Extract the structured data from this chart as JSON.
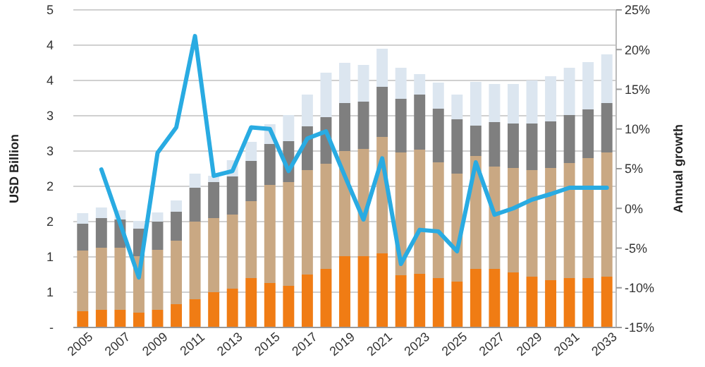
{
  "chart_data": {
    "type": "bar",
    "stacked": true,
    "ylabel": "USD Billion",
    "y2label": "Annual growth",
    "categories": [
      "2005",
      null,
      "2007",
      null,
      "2009",
      null,
      "2011",
      null,
      "2013",
      null,
      "2015",
      null,
      "2017",
      null,
      "2019",
      null,
      "2021",
      null,
      "2023",
      null,
      "2025",
      null,
      "2027",
      null,
      "2029",
      null,
      "2031",
      null,
      "2033"
    ],
    "series": [
      {
        "color": "#f07c14",
        "values": [
          0.23,
          0.25,
          0.25,
          0.21,
          0.25,
          0.33,
          0.4,
          0.5,
          0.55,
          0.7,
          0.63,
          0.59,
          0.75,
          0.83,
          1.01,
          1.01,
          1.05,
          0.74,
          0.76,
          0.7,
          0.65,
          0.83,
          0.83,
          0.78,
          0.72,
          0.67,
          0.7,
          0.7,
          0.72
        ]
      },
      {
        "color": "#c9a883",
        "values": [
          0.86,
          0.88,
          0.88,
          0.8,
          0.85,
          0.9,
          1.1,
          1.05,
          1.05,
          1.09,
          1.39,
          1.47,
          1.48,
          1.49,
          1.49,
          1.52,
          1.65,
          1.74,
          1.76,
          1.64,
          1.53,
          1.6,
          1.45,
          1.48,
          1.51,
          1.59,
          1.63,
          1.7,
          1.76
        ]
      },
      {
        "color": "#7f7f7f",
        "values": [
          0.38,
          0.42,
          0.4,
          0.39,
          0.4,
          0.41,
          0.48,
          0.51,
          0.54,
          0.57,
          0.58,
          0.58,
          0.62,
          0.66,
          0.68,
          0.67,
          0.71,
          0.76,
          0.78,
          0.76,
          0.77,
          0.43,
          0.63,
          0.63,
          0.66,
          0.66,
          0.68,
          0.69,
          0.7
        ]
      },
      {
        "color": "#dce6f0",
        "values": [
          0.15,
          0.15,
          0.13,
          0.11,
          0.13,
          0.16,
          0.2,
          0.09,
          0.23,
          0.27,
          0.28,
          0.37,
          0.45,
          0.63,
          0.57,
          0.52,
          0.54,
          0.44,
          0.29,
          0.37,
          0.35,
          0.62,
          0.54,
          0.56,
          0.61,
          0.64,
          0.67,
          0.67,
          0.69
        ]
      },
      {
        "type": "line",
        "axis": "y2",
        "color": "#29abe2",
        "values": [
          null,
          4.9,
          -1.9,
          -8.7,
          7,
          10.2,
          21.7,
          4.1,
          4.7,
          10.2,
          10,
          4.7,
          8.8,
          9.7,
          4.1,
          -1.4,
          6.3,
          -7,
          -2.7,
          -2.9,
          -5.4,
          5.8,
          -0.8,
          0,
          1.1,
          1.8,
          2.6,
          2.6,
          2.6
        ]
      }
    ],
    "ylim": [
      0,
      4.5
    ],
    "yticks": [
      {
        "value": 0,
        "label": "-"
      },
      {
        "value": 0.5,
        "label": "1"
      },
      {
        "value": 1,
        "label": "1"
      },
      {
        "value": 1.5,
        "label": "2"
      },
      {
        "value": 2,
        "label": "2"
      },
      {
        "value": 2.5,
        "label": "3"
      },
      {
        "value": 3,
        "label": "3"
      },
      {
        "value": 3.5,
        "label": "4"
      },
      {
        "value": 4,
        "label": "4"
      },
      {
        "value": 4.5,
        "label": "5"
      }
    ],
    "y2lim": [
      -15,
      25
    ],
    "y2ticks": [
      {
        "value": -15,
        "label": "-15%"
      },
      {
        "value": -10,
        "label": "-10%"
      },
      {
        "value": -5,
        "label": "-5%"
      },
      {
        "value": 0,
        "label": "0%"
      },
      {
        "value": 5,
        "label": "5%"
      },
      {
        "value": 10,
        "label": "10%"
      },
      {
        "value": 15,
        "label": "15%"
      },
      {
        "value": 20,
        "label": "20%"
      },
      {
        "value": 25,
        "label": "25%"
      }
    ],
    "grid": "y"
  }
}
